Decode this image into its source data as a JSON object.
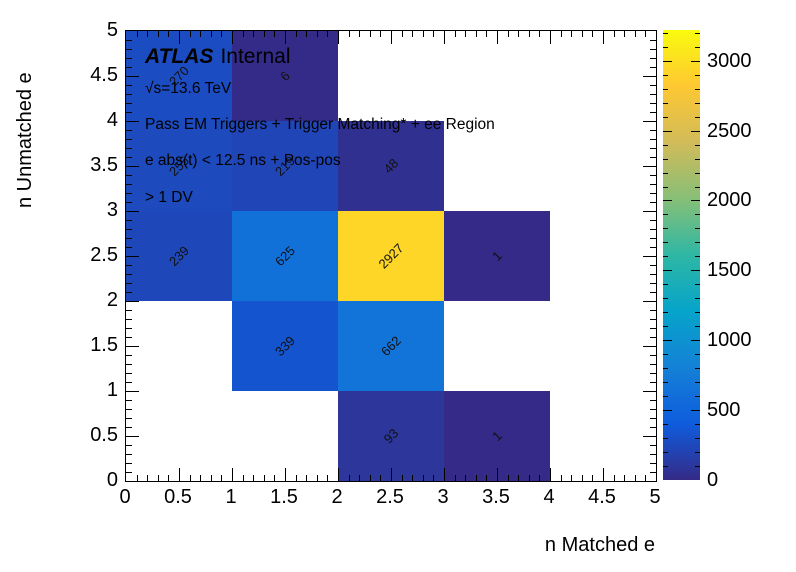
{
  "plot": {
    "atlas_label": "ATLAS",
    "atlas_status": "Internal",
    "annotation_lines": [
      "√s=13.6 TeV",
      "Pass EM Triggers + Trigger Matching* + ee Region",
      "e abs(t) < 12.5 ns + Pos-pos",
      "> 1 DV"
    ]
  },
  "chart_data": {
    "type": "heatmap",
    "title": "",
    "xlabel": "n Matched e",
    "ylabel": "n Unmatched e",
    "xlim": [
      0,
      5
    ],
    "ylim": [
      0,
      5
    ],
    "bin_width_x": 1,
    "bin_width_y": 1,
    "grid": false,
    "x_ticks": [
      "0",
      "0.5",
      "1",
      "1.5",
      "2",
      "2.5",
      "3",
      "3.5",
      "4",
      "4.5",
      "5"
    ],
    "y_ticks": [
      "0",
      "0.5",
      "1",
      "1.5",
      "2",
      "2.5",
      "3",
      "3.5",
      "4",
      "4.5",
      "5"
    ],
    "cells": [
      {
        "x": 0.5,
        "y": 4.5,
        "value": 270
      },
      {
        "x": 1.5,
        "y": 4.5,
        "value": 6
      },
      {
        "x": 0.5,
        "y": 3.5,
        "value": 255
      },
      {
        "x": 1.5,
        "y": 3.5,
        "value": 219
      },
      {
        "x": 2.5,
        "y": 3.5,
        "value": 48
      },
      {
        "x": 0.5,
        "y": 2.5,
        "value": 239
      },
      {
        "x": 1.5,
        "y": 2.5,
        "value": 625
      },
      {
        "x": 2.5,
        "y": 2.5,
        "value": 2927
      },
      {
        "x": 3.5,
        "y": 2.5,
        "value": 1
      },
      {
        "x": 1.5,
        "y": 1.5,
        "value": 339
      },
      {
        "x": 2.5,
        "y": 1.5,
        "value": 662
      },
      {
        "x": 2.5,
        "y": 0.5,
        "value": 93
      },
      {
        "x": 3.5,
        "y": 0.5,
        "value": 1
      }
    ],
    "colorbar": {
      "zmin": 0,
      "zmax": 3220,
      "ticks": [
        "0",
        "500",
        "1000",
        "1500",
        "2000",
        "2500",
        "3000"
      ],
      "tick_values": [
        0,
        500,
        1000,
        1500,
        2000,
        2500,
        3000
      ],
      "palette_name": "root-bird",
      "palette_stops": [
        "#352A87",
        "#0F5CDD",
        "#1481D6",
        "#06A4CA",
        "#2EB7A4",
        "#87BF77",
        "#D1BB59",
        "#FEC832",
        "#F9FB0E"
      ]
    }
  }
}
